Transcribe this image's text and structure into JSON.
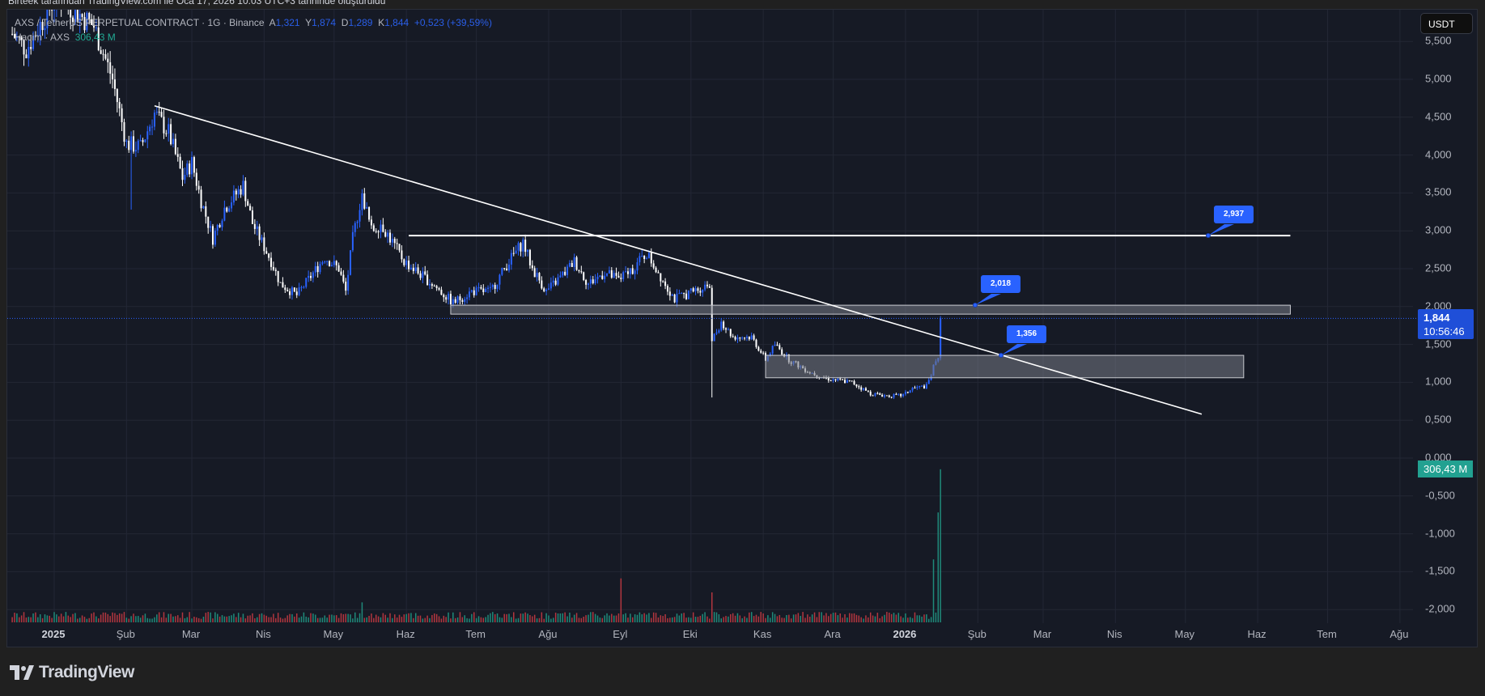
{
  "credit": "Birteek tarafından TradingView.com ile Oca 17, 2026 10:03 UTC+3 tarihinde oluşturuldu",
  "legend": {
    "symbol": "AXS / TetherUS PERPETUAL CONTRACT · 1G · Binance",
    "open_label": "A",
    "open": "1,321",
    "high_label": "Y",
    "high": "1,874",
    "low_label": "D",
    "low": "1,289",
    "close_label": "K",
    "close": "1,844",
    "change": "+0,523 (+39,59%)",
    "volume_label": "Hacim · AXS",
    "volume": "306,43 M"
  },
  "currency_button": "USDT",
  "last_price": {
    "price": "1,844",
    "countdown": "10:56:46"
  },
  "volume_badge": "306,43 M",
  "brand": "TradingView",
  "colors": {
    "background": "#161a25",
    "up_candle": "#2962ff",
    "down_candle": "#ffffff",
    "volume_up": "#1f8a7a",
    "volume_down": "#b2363f",
    "accent": "#2962ff",
    "volume_badge": "#22a191"
  },
  "chart_data": {
    "type": "candlestick",
    "ylim": [
      -2.1,
      5.75
    ],
    "price_ticks": [
      "5,500",
      "5,000",
      "4,500",
      "4,000",
      "3,500",
      "3,000",
      "2,500",
      "2,000",
      "1,500",
      "1,000",
      "0,500",
      "0,000",
      "-0,500",
      "-1,000",
      "-1,500",
      "-2,000"
    ],
    "price_tick_values": [
      5.5,
      5,
      4.5,
      4,
      3.5,
      3,
      2.5,
      2,
      1.5,
      1,
      0.5,
      0,
      -0.5,
      -1,
      -1.5,
      -2
    ],
    "x_ticks": [
      {
        "label": "2025",
        "date": "2025-01-01",
        "bold": true
      },
      {
        "label": "Şub",
        "date": "2025-02-01"
      },
      {
        "label": "Mar",
        "date": "2025-03-01"
      },
      {
        "label": "Nis",
        "date": "2025-04-01"
      },
      {
        "label": "May",
        "date": "2025-05-01"
      },
      {
        "label": "Haz",
        "date": "2025-06-01"
      },
      {
        "label": "Tem",
        "date": "2025-07-01"
      },
      {
        "label": "Ağu",
        "date": "2025-08-01"
      },
      {
        "label": "Eyl",
        "date": "2025-09-01"
      },
      {
        "label": "Eki",
        "date": "2025-10-01"
      },
      {
        "label": "Kas",
        "date": "2025-11-01"
      },
      {
        "label": "Ara",
        "date": "2025-12-01"
      },
      {
        "label": "2026",
        "date": "2026-01-01",
        "bold": true
      },
      {
        "label": "Şub",
        "date": "2026-02-01"
      },
      {
        "label": "Mar",
        "date": "2026-03-01"
      },
      {
        "label": "Nis",
        "date": "2026-04-01"
      },
      {
        "label": "May",
        "date": "2026-05-01"
      },
      {
        "label": "Haz",
        "date": "2026-06-01"
      },
      {
        "label": "Tem",
        "date": "2026-07-01"
      },
      {
        "label": "Ağu",
        "date": "2026-08-01"
      }
    ],
    "approx_closes": [
      [
        "2024-12-14",
        5.6
      ],
      [
        "2024-12-20",
        5.4
      ],
      [
        "2025-01-02",
        6.1
      ],
      [
        "2025-01-18",
        5.7
      ],
      [
        "2025-01-26",
        5.0
      ],
      [
        "2025-02-01",
        4.15
      ],
      [
        "2025-02-07",
        4.1
      ],
      [
        "2025-02-13",
        4.55
      ],
      [
        "2025-02-19",
        4.3
      ],
      [
        "2025-02-25",
        3.7
      ],
      [
        "2025-03-01",
        3.9
      ],
      [
        "2025-03-05",
        3.4
      ],
      [
        "2025-03-10",
        2.9
      ],
      [
        "2025-03-15",
        3.3
      ],
      [
        "2025-03-23",
        3.6
      ],
      [
        "2025-03-27",
        3.1
      ],
      [
        "2025-04-04",
        2.6
      ],
      [
        "2025-04-08",
        2.3
      ],
      [
        "2025-04-15",
        2.15
      ],
      [
        "2025-04-21",
        2.4
      ],
      [
        "2025-04-27",
        2.65
      ],
      [
        "2025-05-03",
        2.5
      ],
      [
        "2025-05-06",
        2.2
      ],
      [
        "2025-05-09",
        2.9
      ],
      [
        "2025-05-13",
        3.5
      ],
      [
        "2025-05-17",
        3.0
      ],
      [
        "2025-05-21",
        3.1
      ],
      [
        "2025-05-25",
        2.9
      ],
      [
        "2025-05-31",
        2.6
      ],
      [
        "2025-06-06",
        2.45
      ],
      [
        "2025-06-12",
        2.3
      ],
      [
        "2025-06-21",
        2.05
      ],
      [
        "2025-06-29",
        2.2
      ],
      [
        "2025-07-07",
        2.2
      ],
      [
        "2025-07-15",
        2.6
      ],
      [
        "2025-07-21",
        2.85
      ],
      [
        "2025-07-25",
        2.5
      ],
      [
        "2025-07-31",
        2.2
      ],
      [
        "2025-08-08",
        2.45
      ],
      [
        "2025-08-12",
        2.6
      ],
      [
        "2025-08-18",
        2.3
      ],
      [
        "2025-08-25",
        2.45
      ],
      [
        "2025-08-31",
        2.35
      ],
      [
        "2025-09-06",
        2.5
      ],
      [
        "2025-09-12",
        2.7
      ],
      [
        "2025-09-18",
        2.4
      ],
      [
        "2025-09-24",
        2.1
      ],
      [
        "2025-10-02",
        2.2
      ],
      [
        "2025-10-09",
        2.3
      ],
      [
        "2025-10-10",
        1.55
      ],
      [
        "2025-10-14",
        1.8
      ],
      [
        "2025-10-19",
        1.6
      ],
      [
        "2025-10-27",
        1.6
      ],
      [
        "2025-11-02",
        1.3
      ],
      [
        "2025-11-06",
        1.5
      ],
      [
        "2025-11-12",
        1.3
      ],
      [
        "2025-11-20",
        1.15
      ],
      [
        "2025-11-28",
        1.05
      ],
      [
        "2025-12-09",
        1.0
      ],
      [
        "2025-12-17",
        0.85
      ],
      [
        "2025-12-25",
        0.82
      ],
      [
        "2025-12-31",
        0.83
      ],
      [
        "2026-01-04",
        0.92
      ],
      [
        "2026-01-10",
        0.95
      ],
      [
        "2026-01-12",
        1.1
      ],
      [
        "2026-01-14",
        1.3
      ],
      [
        "2026-01-15",
        1.321
      ]
    ],
    "last_candle": {
      "date": "2026-01-16",
      "open": 1.321,
      "high": 1.874,
      "low": 1.289,
      "close": 1.844
    },
    "notable_wicks": [
      [
        "2025-10-10",
        0.8
      ],
      [
        "2025-02-03",
        3.28
      ],
      [
        "2024-12-20",
        5.28
      ]
    ],
    "volume_millions_notable": [
      [
        "2025-09-01",
        88
      ],
      [
        "2025-10-10",
        60
      ],
      [
        "2025-05-13",
        40
      ],
      [
        "2026-01-13",
        126
      ],
      [
        "2026-01-15",
        220
      ],
      [
        "2026-01-16",
        306.43
      ]
    ],
    "volume_typical_millions": 14,
    "drawings": {
      "trendline": {
        "from": [
          "2025-02-13",
          4.65
        ],
        "to": [
          "2026-05-08",
          0.58
        ]
      },
      "resistance_line": {
        "price": 2.937,
        "from": "2025-06-02",
        "to": "2026-06-15",
        "label": "2,937"
      },
      "zone_upper": {
        "top": 2.018,
        "bottom": 1.9,
        "from": "2025-06-20",
        "to": "2026-06-15",
        "label": "2,018"
      },
      "zone_lower": {
        "top": 1.356,
        "bottom": 1.06,
        "from": "2025-11-02",
        "to": "2026-05-26",
        "label": "1,356"
      }
    }
  }
}
